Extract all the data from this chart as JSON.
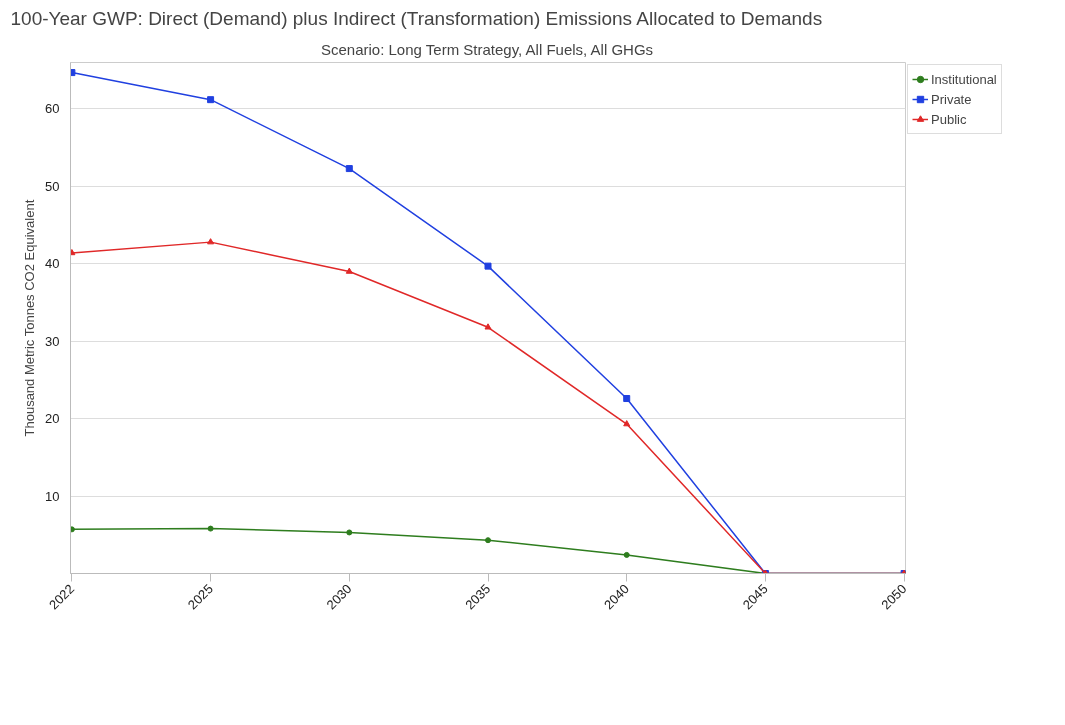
{
  "chart_data": {
    "type": "line",
    "title": "100-Year GWP: Direct (Demand) plus Indirect (Transformation) Emissions Allocated to Demands",
    "subtitle": "Scenario: Long Term Strategy, All Fuels, All GHGs",
    "ylabel": "Thousand Metric Tonnes CO2 Equivalent",
    "categories": [
      "2022",
      "2025",
      "2030",
      "2035",
      "2040",
      "2045",
      "2050"
    ],
    "series": [
      {
        "name": "Institutional",
        "color": "#2e7d1e",
        "marker": "circle",
        "values": [
          5.7,
          5.8,
          5.3,
          4.3,
          2.4,
          0,
          0
        ]
      },
      {
        "name": "Private",
        "color": "#2040e0",
        "marker": "square",
        "values": [
          64.7,
          61.2,
          52.3,
          39.7,
          22.6,
          0,
          0
        ]
      },
      {
        "name": "Public",
        "color": "#e02828",
        "marker": "triangle",
        "values": [
          41.4,
          42.8,
          39.0,
          31.8,
          19.3,
          0,
          0
        ]
      }
    ],
    "ylim": [
      0,
      66
    ],
    "yticks": [
      10,
      20,
      30,
      40,
      50,
      60
    ],
    "grid": "y",
    "legend": "top right"
  }
}
